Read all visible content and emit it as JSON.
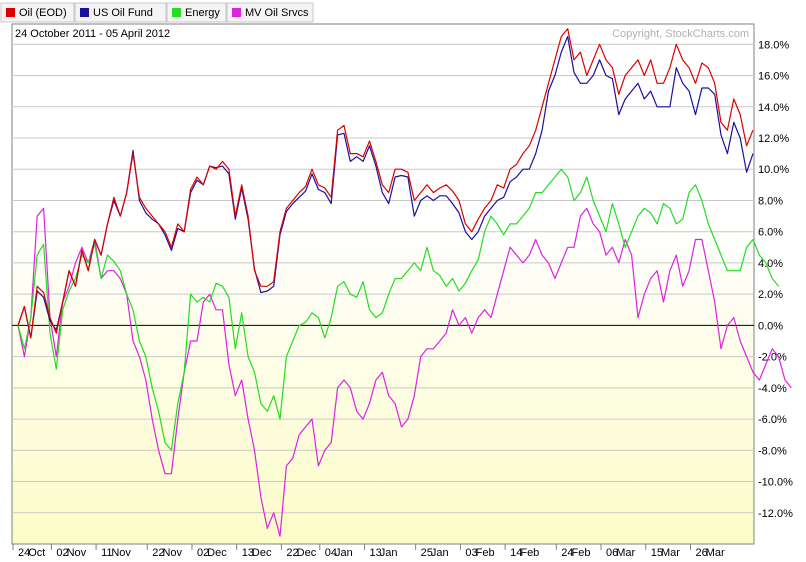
{
  "date_range": "24 October 2011 - 05 April 2012",
  "copyright": "Copyright, StockCharts.com",
  "chart_data": {
    "type": "line",
    "title": "",
    "xlabel": "",
    "ylabel": "",
    "ylim": [
      -14.0,
      19.3
    ],
    "y_ticks": [
      -12,
      -10,
      -8,
      -6,
      -4,
      -2,
      0,
      2,
      4,
      6,
      8,
      10,
      12,
      14,
      16,
      18
    ],
    "y_tick_labels": [
      "-12.0%",
      "-10.0%",
      "-8.0%",
      "-6.0%",
      "-4.0%",
      "-2.0%",
      "0.0%",
      "2.0%",
      "4.0%",
      "6.0%",
      "8.0%",
      "10.0%",
      "12.0%",
      "14.0%",
      "16.0%",
      "18.0%"
    ],
    "grid": true,
    "zero_line": true,
    "legend_position": "top-left",
    "x_tick_labels": [
      {
        "label": "24",
        "index": 0
      },
      {
        "label": "Oct",
        "index": 1.6
      },
      {
        "label": "02",
        "index": 6
      },
      {
        "label": "Nov",
        "index": 7.6
      },
      {
        "label": "11",
        "index": 13
      },
      {
        "label": "Nov",
        "index": 14.6
      },
      {
        "label": "22",
        "index": 21
      },
      {
        "label": "Nov",
        "index": 22.6
      },
      {
        "label": "02",
        "index": 28
      },
      {
        "label": "Dec",
        "index": 29.6
      },
      {
        "label": "13",
        "index": 35
      },
      {
        "label": "Dec",
        "index": 36.6
      },
      {
        "label": "22",
        "index": 42
      },
      {
        "label": "Dec",
        "index": 43.6
      },
      {
        "label": "04",
        "index": 48
      },
      {
        "label": "Jan",
        "index": 49.6
      },
      {
        "label": "13",
        "index": 55
      },
      {
        "label": "Jan",
        "index": 56.6
      },
      {
        "label": "25",
        "index": 63
      },
      {
        "label": "Jan",
        "index": 64.6
      },
      {
        "label": "03",
        "index": 70
      },
      {
        "label": "Feb",
        "index": 71.6
      },
      {
        "label": "14",
        "index": 77
      },
      {
        "label": "Feb",
        "index": 78.6
      },
      {
        "label": "24",
        "index": 85
      },
      {
        "label": "Feb",
        "index": 86.6
      },
      {
        "label": "06",
        "index": 92
      },
      {
        "label": "Mar",
        "index": 93.6
      },
      {
        "label": "15",
        "index": 99
      },
      {
        "label": "Mar",
        "index": 100.6
      },
      {
        "label": "26",
        "index": 106
      },
      {
        "label": "Mar",
        "index": 107.6
      }
    ],
    "series": [
      {
        "name": "Oil (EOD)",
        "color": "#dd0000",
        "values": [
          0,
          1.2,
          -0.8,
          2.5,
          2.1,
          0.5,
          -0.5,
          1.5,
          3.5,
          2.5,
          4.8,
          3.5,
          5.5,
          4.5,
          6.5,
          8.2,
          7.0,
          8.5,
          11.0,
          8.2,
          7.5,
          7.0,
          6.5,
          6.0,
          5.0,
          6.5,
          6.0,
          8.7,
          9.5,
          9.0,
          10.2,
          10.0,
          10.5,
          10.0,
          7.0,
          9.0,
          7.0,
          3.5,
          2.5,
          2.5,
          2.8,
          6.0,
          7.5,
          8.0,
          8.5,
          8.9,
          10.0,
          9.0,
          8.8,
          8.2,
          12.5,
          12.8,
          11.0,
          11.0,
          10.8,
          11.8,
          10.5,
          9.0,
          8.5,
          10.0,
          10.0,
          9.8,
          8.0,
          8.5,
          9.0,
          8.5,
          8.8,
          9.0,
          8.6,
          8.0,
          6.5,
          6.0,
          6.8,
          7.5,
          8.0,
          9.0,
          8.8,
          10.0,
          10.3,
          11.0,
          11.5,
          12.5,
          14.0,
          15.5,
          17.0,
          18.5,
          19.0,
          17.0,
          17.5,
          16.0,
          17.0,
          18.0,
          17.0,
          16.5,
          14.8,
          16.0,
          16.5,
          17.0,
          16.0,
          17.0,
          15.5,
          15.5,
          16.5,
          18.0,
          17.0,
          16.5,
          15.5,
          16.8,
          16.5,
          15.5,
          13.0,
          12.5,
          14.5,
          13.5,
          11.5,
          12.5
        ]
      },
      {
        "name": "US Oil Fund",
        "color": "#1a0f9e",
        "values": [
          0,
          1.2,
          -0.8,
          2.2,
          1.8,
          0.3,
          -0.3,
          1.5,
          3.5,
          2.5,
          4.8,
          3.5,
          5.5,
          4.5,
          6.5,
          8.0,
          7.0,
          8.5,
          11.2,
          8.0,
          7.2,
          6.8,
          6.5,
          5.8,
          4.8,
          6.2,
          6.0,
          8.5,
          9.3,
          9.0,
          10.2,
          10.1,
          10.2,
          9.7,
          6.8,
          8.8,
          6.8,
          3.6,
          2.1,
          2.2,
          2.5,
          5.8,
          7.3,
          7.8,
          8.2,
          8.6,
          9.7,
          8.7,
          8.5,
          7.8,
          12.2,
          12.3,
          10.5,
          10.8,
          10.5,
          11.5,
          10.2,
          8.5,
          7.8,
          9.5,
          9.6,
          9.5,
          7.0,
          8.0,
          8.3,
          8.0,
          8.3,
          8.3,
          7.8,
          7.2,
          6.0,
          5.5,
          6.0,
          7.0,
          7.5,
          8.0,
          8.2,
          9.2,
          9.5,
          10.0,
          10.0,
          11.0,
          12.5,
          15.0,
          16.0,
          17.5,
          18.5,
          16.2,
          15.5,
          15.5,
          16.0,
          17.0,
          16.0,
          15.8,
          13.5,
          14.5,
          15.0,
          15.5,
          14.5,
          15.0,
          14.0,
          14.0,
          14.0,
          16.5,
          15.5,
          15.0,
          13.5,
          15.2,
          15.2,
          14.8,
          12.2,
          11.0,
          13.0,
          12.0,
          9.8,
          11.0
        ]
      },
      {
        "name": "Energy",
        "color": "#22dd22",
        "values": [
          0,
          -1.5,
          0.5,
          4.5,
          5.2,
          -0.5,
          -2.8,
          1.0,
          2.2,
          3.0,
          4.5,
          4.0,
          5.2,
          3.0,
          4.5,
          4.1,
          3.5,
          2.0,
          1.0,
          -1.0,
          -2.0,
          -4.0,
          -5.5,
          -7.5,
          -8.0,
          -5.0,
          -3.0,
          2.0,
          1.5,
          1.8,
          1.5,
          2.7,
          2.5,
          1.8,
          -1.5,
          0.8,
          -2.0,
          -3.0,
          -5.0,
          -5.5,
          -4.5,
          -6.0,
          -2.0,
          -1.0,
          0,
          0.2,
          0.8,
          0.5,
          -0.8,
          0.5,
          2.5,
          2.8,
          2.0,
          1.8,
          2.8,
          1.0,
          0.5,
          0.8,
          2.0,
          3.0,
          3.0,
          3.5,
          4.0,
          3.5,
          5.0,
          3.5,
          3.2,
          2.5,
          3.0,
          2.2,
          2.7,
          3.5,
          4.2,
          6.0,
          7.0,
          6.5,
          5.8,
          6.5,
          6.5,
          7.0,
          7.5,
          8.5,
          8.5,
          9.0,
          9.5,
          10.0,
          9.5,
          8.0,
          8.5,
          9.5,
          8.0,
          7.0,
          6.0,
          7.8,
          6.5,
          5.0,
          6.0,
          7.0,
          7.5,
          7.2,
          6.5,
          7.8,
          7.5,
          6.5,
          6.8,
          8.5,
          9.0,
          8.0,
          6.5,
          5.5,
          4.5,
          3.5,
          3.5,
          3.5,
          5.0,
          5.5,
          4.5,
          4.0,
          3.0,
          2.5
        ]
      },
      {
        "name": "MV Oil Srvcs",
        "color": "#e020e0",
        "values": [
          0,
          -2.0,
          0.5,
          7.0,
          7.5,
          0.5,
          -2.0,
          1.5,
          2.5,
          4.0,
          5.0,
          4.0,
          5.5,
          3.0,
          3.5,
          3.5,
          3.0,
          2.0,
          -1.0,
          -2.0,
          -3.5,
          -6.0,
          -8.0,
          -9.5,
          -9.5,
          -6.0,
          -3.0,
          -1.0,
          -1.0,
          1.5,
          2.0,
          1.0,
          1.0,
          -2.5,
          -4.5,
          -3.5,
          -6.0,
          -8.0,
          -11.0,
          -13.0,
          -12.0,
          -13.5,
          -9.0,
          -8.5,
          -7.0,
          -6.5,
          -6.0,
          -9.0,
          -8.0,
          -7.5,
          -4.0,
          -3.5,
          -4.0,
          -5.5,
          -6.0,
          -5.0,
          -3.5,
          -3.0,
          -4.5,
          -5.0,
          -6.5,
          -6.0,
          -4.5,
          -2.0,
          -1.5,
          -1.5,
          -1.0,
          -0.5,
          1.0,
          0,
          0.5,
          -0.5,
          0.5,
          1.0,
          0.5,
          2.0,
          3.5,
          5.0,
          4.5,
          4.0,
          4.5,
          5.5,
          4.5,
          4.0,
          3.0,
          4.0,
          5.0,
          5.0,
          7.0,
          7.5,
          6.5,
          6.0,
          4.5,
          5.0,
          4.0,
          5.5,
          4.5,
          0.5,
          2.0,
          3.0,
          3.5,
          1.5,
          3.5,
          4.5,
          2.5,
          3.5,
          5.5,
          5.5,
          3.5,
          1.5,
          -1.5,
          0,
          0.5,
          -1.0,
          -2.0,
          -3.0,
          -3.5,
          -2.5,
          -1.5,
          -2.0,
          -3.5,
          -4.0
        ]
      }
    ]
  }
}
